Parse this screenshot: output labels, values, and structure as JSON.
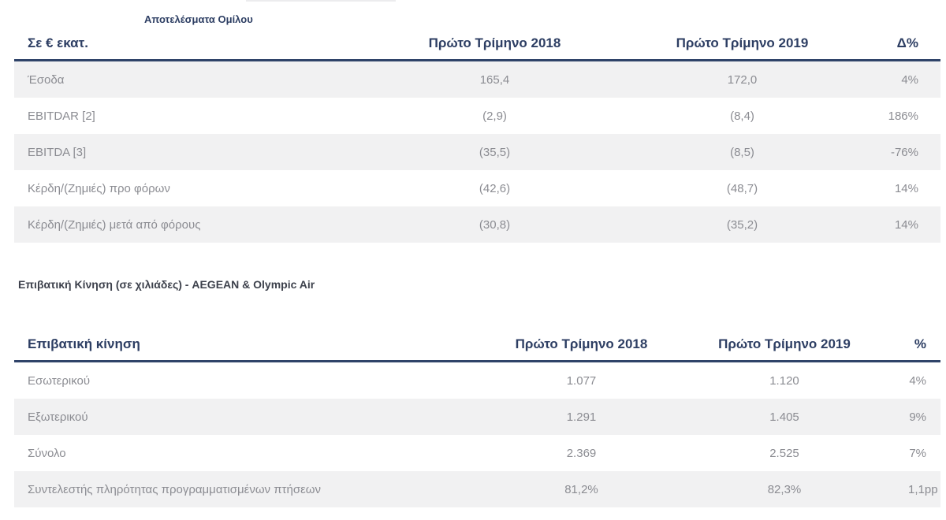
{
  "theme": {
    "accent_navy": "#2d3e63",
    "border_navy": "#2f4369",
    "muted_text": "#8b8c92",
    "alt_row_bg": "#f1f1f2",
    "section_title_color": "#3d414c"
  },
  "group_results": {
    "caption": "Αποτελέσματα Ομίλου",
    "unit_header": "Σε € εκατ.",
    "col_2018": "Πρώτο Τρίμηνο 2018",
    "col_2019": "Πρώτο Τρίμηνο 2019",
    "col_delta": "Δ%",
    "rows": [
      {
        "label": "Έσοδα",
        "v2018": "165,4",
        "v2019": "172,0",
        "delta": "4%"
      },
      {
        "label": "EBITDAR [2]",
        "v2018": "(2,9)",
        "v2019": "(8,4)",
        "delta": "186%"
      },
      {
        "label": "EBITDA [3]",
        "v2018": "(35,5)",
        "v2019": "(8,5)",
        "delta": "-76%"
      },
      {
        "label": "Κέρδη/(Ζημιές) προ φόρων",
        "v2018": "(42,6)",
        "v2019": "(48,7)",
        "delta": "14%"
      },
      {
        "label": "Κέρδη/(Ζημιές) μετά από φόρους",
        "v2018": "(30,8)",
        "v2019": "(35,2)",
        "delta": "14%"
      }
    ]
  },
  "traffic_section": {
    "title": "Επιβατική Κίνηση (σε χιλιάδες) - AEGEAN & Olympic Air",
    "table": {
      "label_header": "Επιβατική κίνηση",
      "col_2018": "Πρώτο Τρίμηνο 2018",
      "col_2019": "Πρώτο Τρίμηνο 2019",
      "col_pct": "%",
      "rows": [
        {
          "label": "Εσωτερικού",
          "v2018": "1.077",
          "v2019": "1.120",
          "pct": "4%"
        },
        {
          "label": "Εξωτερικού",
          "v2018": "1.291",
          "v2019": "1.405",
          "pct": "9%"
        },
        {
          "label": "Σύνολο",
          "v2018": "2.369",
          "v2019": "2.525",
          "pct": "7%"
        },
        {
          "label": "Συντελεστής πληρότητας προγραμματισμένων πτήσεων",
          "v2018": "81,2%",
          "v2019": "82,3%",
          "pct": "1,1pp"
        }
      ]
    }
  }
}
